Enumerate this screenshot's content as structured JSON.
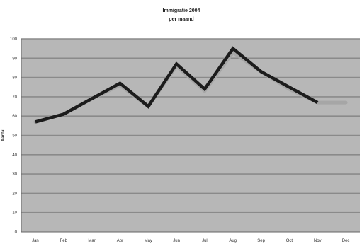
{
  "chart_data": {
    "type": "line",
    "title": "Immigratie 2004",
    "subtitle": "per maand",
    "xlabel": "",
    "ylabel": "Aantal",
    "categories": [
      "Jan",
      "Feb",
      "Mar",
      "Apr",
      "May",
      "Jun",
      "Jul",
      "Aug",
      "Sep",
      "Oct",
      "Nov",
      "Dec"
    ],
    "series": [
      {
        "values": [
          57,
          61,
          69,
          77,
          65,
          87,
          74,
          95,
          83,
          75,
          67,
          null
        ]
      }
    ],
    "shadow_series": [
      {
        "values": [
          57,
          61,
          69,
          76,
          65,
          86,
          73,
          93,
          83,
          74,
          67,
          67
        ]
      }
    ],
    "ylim": [
      0,
      100
    ],
    "yticks": [
      0,
      10,
      20,
      30,
      40,
      50,
      60,
      70,
      80,
      90,
      100
    ],
    "grid": true,
    "legend": "none",
    "colors": {
      "plot_background": "#b7b7b7",
      "gridline": "#8a8a8a",
      "line": "#1c1c1c",
      "shadow_line": "#a6a6a6",
      "axis": "#666666"
    }
  }
}
